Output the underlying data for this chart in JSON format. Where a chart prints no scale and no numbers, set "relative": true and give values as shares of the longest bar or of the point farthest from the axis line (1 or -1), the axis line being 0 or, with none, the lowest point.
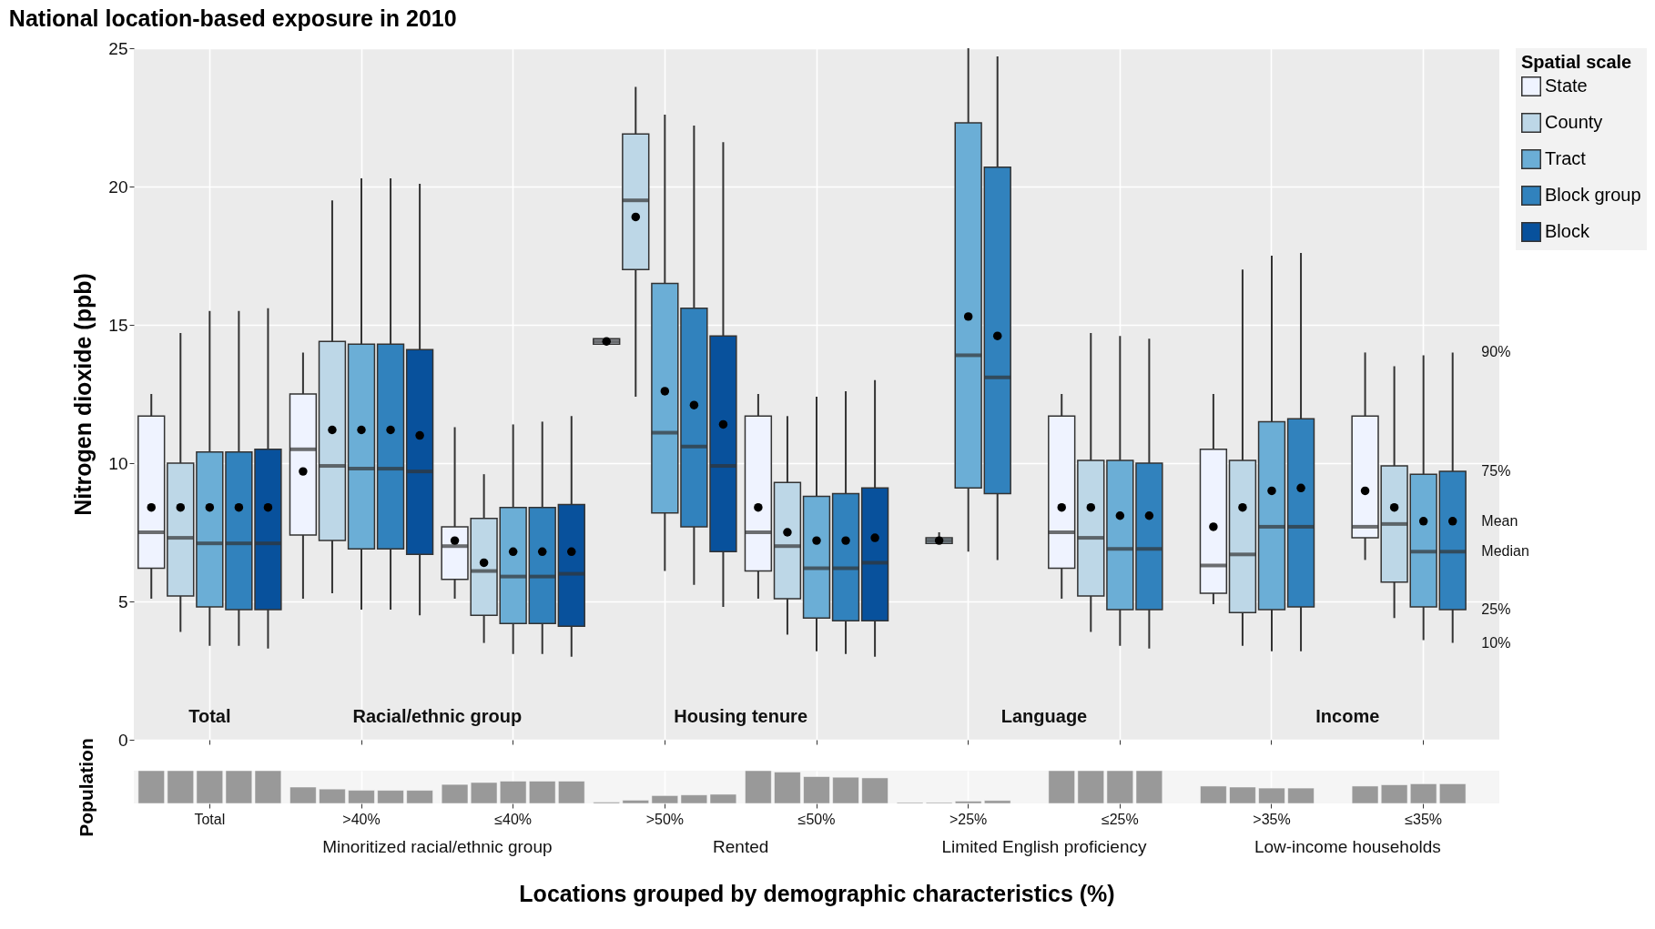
{
  "chart_data": [
    {
      "type": "box",
      "title": "National location-based exposure in 2010",
      "ylabel": "Nitrogen dioxide (ppb)",
      "legend_title": "Spatial scale",
      "legend": "top right",
      "grid": true,
      "marker": "circle",
      "categories": [
        "Total",
        ">40%",
        "≤40%",
        ">50%",
        "≤50%",
        ">25%",
        "≤25%",
        ">35%",
        "≤35%"
      ],
      "ylim": [
        0,
        25
      ],
      "yticks": [
        0,
        5,
        10,
        15,
        20,
        25
      ],
      "series": [
        {
          "name": "State",
          "color": "#eff3ff",
          "boxes": [
            {
              "low": 5.1,
              "q1": 6.2,
              "median": 7.5,
              "q3": 11.7,
              "high": 12.5,
              "mean": 8.4
            },
            {
              "low": 5.1,
              "q1": 7.4,
              "median": 10.5,
              "q3": 12.5,
              "high": 14.0,
              "mean": 9.7
            },
            {
              "low": 5.1,
              "q1": 5.8,
              "median": 7.0,
              "q3": 7.7,
              "high": 11.3,
              "mean": 7.2
            },
            {
              "low": 14.3,
              "q1": 14.3,
              "median": 14.4,
              "q3": 14.5,
              "high": 14.5,
              "mean": 14.4
            },
            {
              "low": 5.1,
              "q1": 6.1,
              "median": 7.5,
              "q3": 11.7,
              "high": 12.5,
              "mean": 8.4
            },
            null,
            {
              "low": 5.1,
              "q1": 6.2,
              "median": 7.5,
              "q3": 11.7,
              "high": 12.5,
              "mean": 8.4
            },
            {
              "low": 4.9,
              "q1": 5.3,
              "median": 6.3,
              "q3": 10.5,
              "high": 12.5,
              "mean": 7.7
            },
            {
              "low": 6.5,
              "q1": 7.3,
              "median": 7.7,
              "q3": 11.7,
              "high": 14.0,
              "mean": 9.0
            }
          ]
        },
        {
          "name": "County",
          "color": "#bdd7e7",
          "boxes": [
            {
              "low": 3.9,
              "q1": 5.2,
              "median": 7.3,
              "q3": 10.0,
              "high": 14.7,
              "mean": 8.4
            },
            {
              "low": 5.3,
              "q1": 7.2,
              "median": 9.9,
              "q3": 14.4,
              "high": 19.5,
              "mean": 11.2
            },
            {
              "low": 3.5,
              "q1": 4.5,
              "median": 6.1,
              "q3": 8.0,
              "high": 9.6,
              "mean": 6.4
            },
            {
              "low": 12.4,
              "q1": 17.0,
              "median": 19.5,
              "q3": 21.9,
              "high": 23.6,
              "mean": 18.9
            },
            {
              "low": 3.8,
              "q1": 5.1,
              "median": 7.0,
              "q3": 9.3,
              "high": 11.7,
              "mean": 7.5
            },
            {
              "low": 7.1,
              "q1": 7.1,
              "median": 7.2,
              "q3": 7.3,
              "high": 7.5,
              "mean": 7.2
            },
            {
              "low": 3.9,
              "q1": 5.2,
              "median": 7.3,
              "q3": 10.1,
              "high": 14.7,
              "mean": 8.4
            },
            {
              "low": 3.4,
              "q1": 4.6,
              "median": 6.7,
              "q3": 10.1,
              "high": 17.0,
              "mean": 8.4
            },
            {
              "low": 4.4,
              "q1": 5.7,
              "median": 7.8,
              "q3": 9.9,
              "high": 13.5,
              "mean": 8.4
            }
          ]
        },
        {
          "name": "Tract",
          "color": "#6baed6",
          "boxes": [
            {
              "low": 3.4,
              "q1": 4.8,
              "median": 7.1,
              "q3": 10.4,
              "high": 15.5,
              "mean": 8.4
            },
            {
              "low": 4.7,
              "q1": 6.9,
              "median": 9.8,
              "q3": 14.3,
              "high": 20.3,
              "mean": 11.2
            },
            {
              "low": 3.1,
              "q1": 4.2,
              "median": 5.9,
              "q3": 8.4,
              "high": 11.4,
              "mean": 6.8
            },
            {
              "low": 6.1,
              "q1": 8.2,
              "median": 11.1,
              "q3": 16.5,
              "high": 22.6,
              "mean": 12.6
            },
            {
              "low": 3.2,
              "q1": 4.4,
              "median": 6.2,
              "q3": 8.8,
              "high": 12.4,
              "mean": 7.2
            },
            {
              "low": 6.8,
              "q1": 9.1,
              "median": 13.9,
              "q3": 22.3,
              "high": 25.0,
              "mean": 15.3
            },
            {
              "low": 3.4,
              "q1": 4.7,
              "median": 6.9,
              "q3": 10.1,
              "high": 14.6,
              "mean": 8.1
            },
            {
              "low": 3.2,
              "q1": 4.7,
              "median": 7.7,
              "q3": 11.5,
              "high": 17.5,
              "mean": 9.0
            },
            {
              "low": 3.6,
              "q1": 4.8,
              "median": 6.8,
              "q3": 9.6,
              "high": 13.9,
              "mean": 7.9
            }
          ]
        },
        {
          "name": "Block group",
          "color": "#3182bd",
          "boxes": [
            {
              "low": 3.4,
              "q1": 4.7,
              "median": 7.1,
              "q3": 10.4,
              "high": 15.5,
              "mean": 8.4
            },
            {
              "low": 4.7,
              "q1": 6.9,
              "median": 9.8,
              "q3": 14.3,
              "high": 20.3,
              "mean": 11.2
            },
            {
              "low": 3.1,
              "q1": 4.2,
              "median": 5.9,
              "q3": 8.4,
              "high": 11.5,
              "mean": 6.8
            },
            {
              "low": 5.6,
              "q1": 7.7,
              "median": 10.6,
              "q3": 15.6,
              "high": 22.2,
              "mean": 12.1
            },
            {
              "low": 3.1,
              "q1": 4.3,
              "median": 6.2,
              "q3": 8.9,
              "high": 12.6,
              "mean": 7.2
            },
            {
              "low": 6.5,
              "q1": 8.9,
              "median": 13.1,
              "q3": 20.7,
              "high": 24.7,
              "mean": 14.6
            },
            {
              "low": 3.3,
              "q1": 4.7,
              "median": 6.9,
              "q3": 10.0,
              "high": 14.5,
              "mean": 8.1
            },
            {
              "low": 3.2,
              "q1": 4.8,
              "median": 7.7,
              "q3": 11.6,
              "high": 17.6,
              "mean": 9.1
            },
            {
              "low": 3.5,
              "q1": 4.7,
              "median": 6.8,
              "q3": 9.7,
              "high": 14.0,
              "mean": 7.9
            }
          ]
        },
        {
          "name": "Block",
          "color": "#08519c",
          "boxes": [
            {
              "low": 3.3,
              "q1": 4.7,
              "median": 7.1,
              "q3": 10.5,
              "high": 15.6,
              "mean": 8.4
            },
            {
              "low": 4.5,
              "q1": 6.7,
              "median": 9.7,
              "q3": 14.1,
              "high": 20.1,
              "mean": 11.0
            },
            {
              "low": 3.0,
              "q1": 4.1,
              "median": 6.0,
              "q3": 8.5,
              "high": 11.7,
              "mean": 6.8
            },
            {
              "low": 4.8,
              "q1": 6.8,
              "median": 9.9,
              "q3": 14.6,
              "high": 21.6,
              "mean": 11.4
            },
            {
              "low": 3.0,
              "q1": 4.3,
              "median": 6.4,
              "q3": 9.1,
              "high": 13.0,
              "mean": 7.3
            },
            null,
            null,
            null,
            null
          ]
        }
      ],
      "annotations": [
        "Total",
        "Racial/ethnic group",
        "Housing tenure",
        "Language",
        "Income",
        "90%",
        "75%",
        "Mean",
        "Median",
        "25%",
        "10%"
      ]
    },
    {
      "type": "bar",
      "relative": true,
      "ylabel": "Population",
      "xlabel": "Locations grouped by demographic characteristics (%)",
      "grid": "x",
      "categories": [
        null,
        null,
        null,
        null,
        null,
        null,
        null,
        null,
        null
      ],
      "series": [
        {
          "color": "#999999",
          "values": [
            1,
            0.5,
            0.58,
            0.04,
            1,
            0.03,
            1,
            0.53,
            0.53
          ]
        },
        {
          "color": "#999999",
          "values": [
            1,
            0.44,
            0.64,
            0.1,
            0.96,
            0.03,
            1,
            0.5,
            0.57
          ]
        },
        {
          "color": "#999999",
          "values": [
            1,
            0.4,
            0.68,
            0.24,
            0.82,
            0.07,
            1,
            0.47,
            0.6
          ]
        },
        {
          "color": "#999999",
          "values": [
            1,
            0.4,
            0.68,
            0.26,
            0.8,
            0.09,
            1,
            0.47,
            0.6
          ]
        },
        {
          "color": "#999999",
          "values": [
            1,
            0.4,
            0.68,
            0.28,
            0.78,
            null,
            null,
            null,
            null
          ]
        }
      ],
      "annotations": [
        "Minoritized racial/ethnic group",
        "Rented",
        "Limited English proficiency",
        "Low-income households"
      ]
    }
  ]
}
